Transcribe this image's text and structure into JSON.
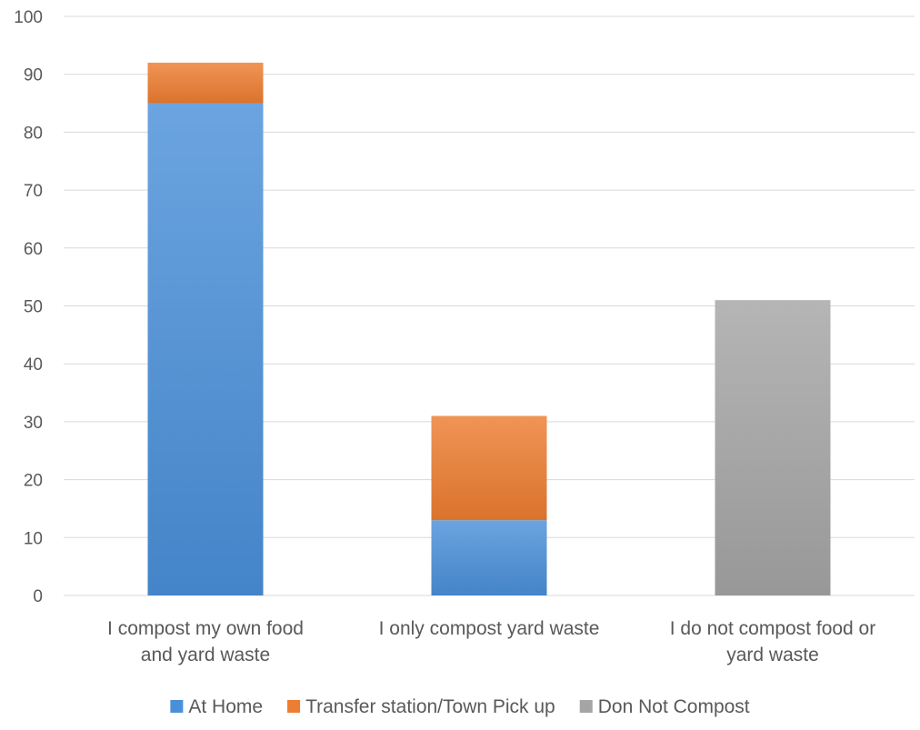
{
  "chart_data": {
    "type": "bar",
    "stacked": true,
    "categories": [
      [
        "I compost my own food",
        "and yard waste"
      ],
      [
        "I only compost yard waste"
      ],
      [
        "I do not compost food or",
        "yard waste"
      ]
    ],
    "series": [
      {
        "name": "At Home",
        "values": [
          85,
          13,
          0
        ],
        "color": "#4a90d9"
      },
      {
        "name": "Transfer station/Town Pick up",
        "values": [
          7,
          18,
          0
        ],
        "color": "#ed7d31"
      },
      {
        "name": "Don Not Compost",
        "values": [
          0,
          0,
          51
        ],
        "color": "#a5a5a5"
      }
    ],
    "ylim": [
      0,
      100
    ],
    "yticks": [
      0,
      10,
      20,
      30,
      40,
      50,
      60,
      70,
      80,
      90,
      100
    ],
    "grid": true,
    "legend_position": "bottom",
    "title": "",
    "xlabel": "",
    "ylabel": ""
  }
}
